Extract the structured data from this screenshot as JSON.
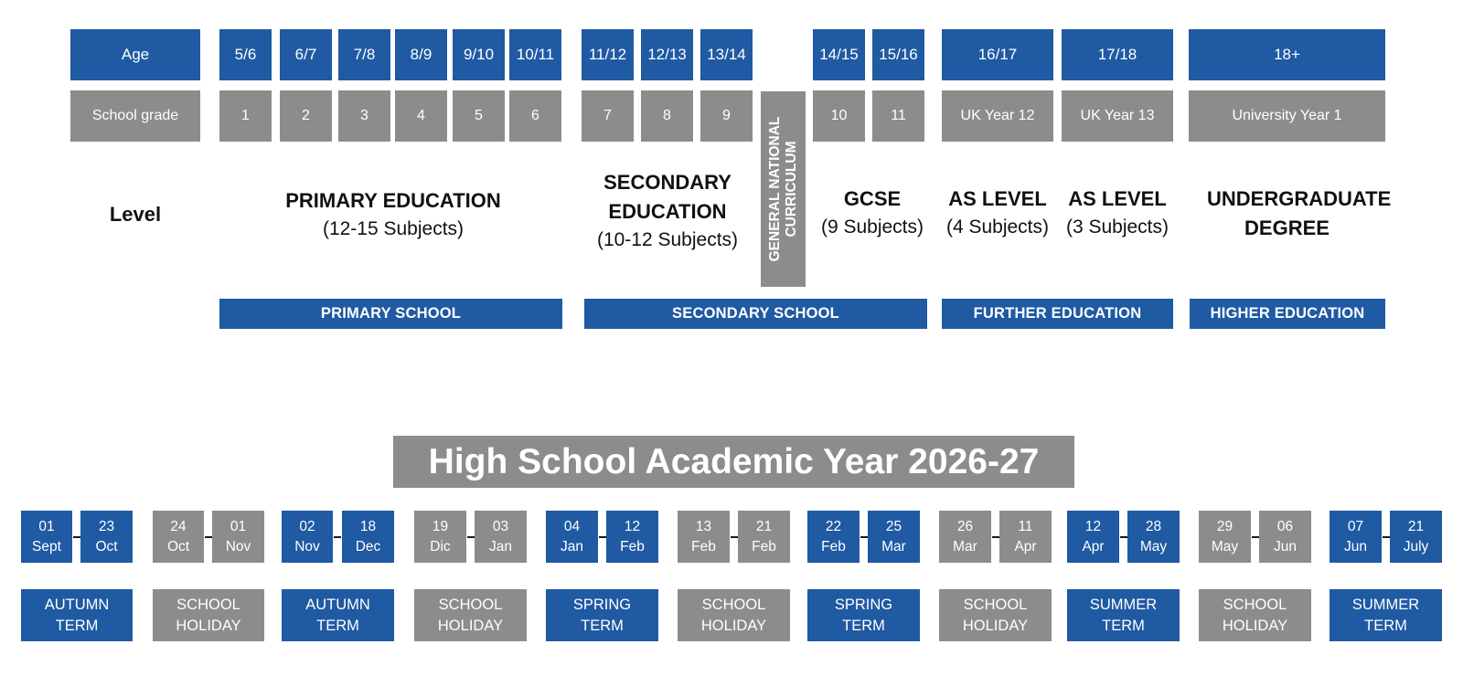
{
  "header_row": {
    "age_label": "Age",
    "ages": [
      "5/6",
      "6/7",
      "7/8",
      "8/9",
      "9/10",
      "10/11",
      "11/12",
      "12/13",
      "13/14",
      "14/15",
      "15/16",
      "16/17",
      "17/18",
      "18+"
    ]
  },
  "grade_row": {
    "label": "School grade",
    "grades": [
      "1",
      "2",
      "3",
      "4",
      "5",
      "6",
      "7",
      "8",
      "9",
      "10",
      "11",
      "UK Year 12",
      "UK Year 13",
      "University Year 1"
    ]
  },
  "level_row": {
    "label": "Level",
    "levels": [
      {
        "title": "PRIMARY EDUCATION",
        "subtitle": "(12-15 Subjects)"
      },
      {
        "title": "SECONDARY EDUCATION",
        "subtitle": "(10-12 Subjects)"
      },
      {
        "title": "GCSE",
        "subtitle": "(9 Subjects)"
      },
      {
        "title": "AS LEVEL",
        "subtitle": "(4 Subjects)"
      },
      {
        "title": "AS LEVEL",
        "subtitle": "(3 Subjects)"
      },
      {
        "title": "UNDERGRADUATE DEGREE",
        "subtitle": ""
      }
    ],
    "vertical_label": "GENERAL NATIONAL CURRICULUM"
  },
  "stages": [
    "PRIMARY SCHOOL",
    "SECONDARY SCHOOL",
    "FURTHER EDUCATION",
    "HIGHER EDUCATION"
  ],
  "calendar": {
    "title": "High School Academic Year 2026-27",
    "periods": [
      {
        "type": "term",
        "start": {
          "day": "01",
          "month": "Sept"
        },
        "end": {
          "day": "23",
          "month": "Oct"
        },
        "label_line1": "AUTUMN",
        "label_line2": "TERM"
      },
      {
        "type": "holiday",
        "start": {
          "day": "24",
          "month": "Oct"
        },
        "end": {
          "day": "01",
          "month": "Nov"
        },
        "label_line1": "SCHOOL",
        "label_line2": "HOLIDAY"
      },
      {
        "type": "term",
        "start": {
          "day": "02",
          "month": "Nov"
        },
        "end": {
          "day": "18",
          "month": "Dec"
        },
        "label_line1": "AUTUMN",
        "label_line2": "TERM"
      },
      {
        "type": "holiday",
        "start": {
          "day": "19",
          "month": "Dic"
        },
        "end": {
          "day": "03",
          "month": "Jan"
        },
        "label_line1": "SCHOOL",
        "label_line2": "HOLIDAY"
      },
      {
        "type": "term",
        "start": {
          "day": "04",
          "month": "Jan"
        },
        "end": {
          "day": "12",
          "month": "Feb"
        },
        "label_line1": "SPRING",
        "label_line2": "TERM"
      },
      {
        "type": "holiday",
        "start": {
          "day": "13",
          "month": "Feb"
        },
        "end": {
          "day": "21",
          "month": "Feb"
        },
        "label_line1": "SCHOOL",
        "label_line2": "HOLIDAY"
      },
      {
        "type": "term",
        "start": {
          "day": "22",
          "month": "Feb"
        },
        "end": {
          "day": "25",
          "month": "Mar"
        },
        "label_line1": "SPRING",
        "label_line2": "TERM"
      },
      {
        "type": "holiday",
        "start": {
          "day": "26",
          "month": "Mar"
        },
        "end": {
          "day": "11",
          "month": "Apr"
        },
        "label_line1": "SCHOOL",
        "label_line2": "HOLIDAY"
      },
      {
        "type": "term",
        "start": {
          "day": "12",
          "month": "Apr"
        },
        "end": {
          "day": "28",
          "month": "May"
        },
        "label_line1": "SUMMER",
        "label_line2": "TERM"
      },
      {
        "type": "holiday",
        "start": {
          "day": "29",
          "month": "May"
        },
        "end": {
          "day": "06",
          "month": "Jun"
        },
        "label_line1": "SCHOOL",
        "label_line2": "HOLIDAY"
      },
      {
        "type": "term",
        "start": {
          "day": "07",
          "month": "Jun"
        },
        "end": {
          "day": "21",
          "month": "July"
        },
        "label_line1": "SUMMER",
        "label_line2": "TERM"
      }
    ]
  },
  "colors": {
    "blue": "#1f5aa3",
    "gray": "#8c8c8c",
    "text_dark": "#111111"
  }
}
